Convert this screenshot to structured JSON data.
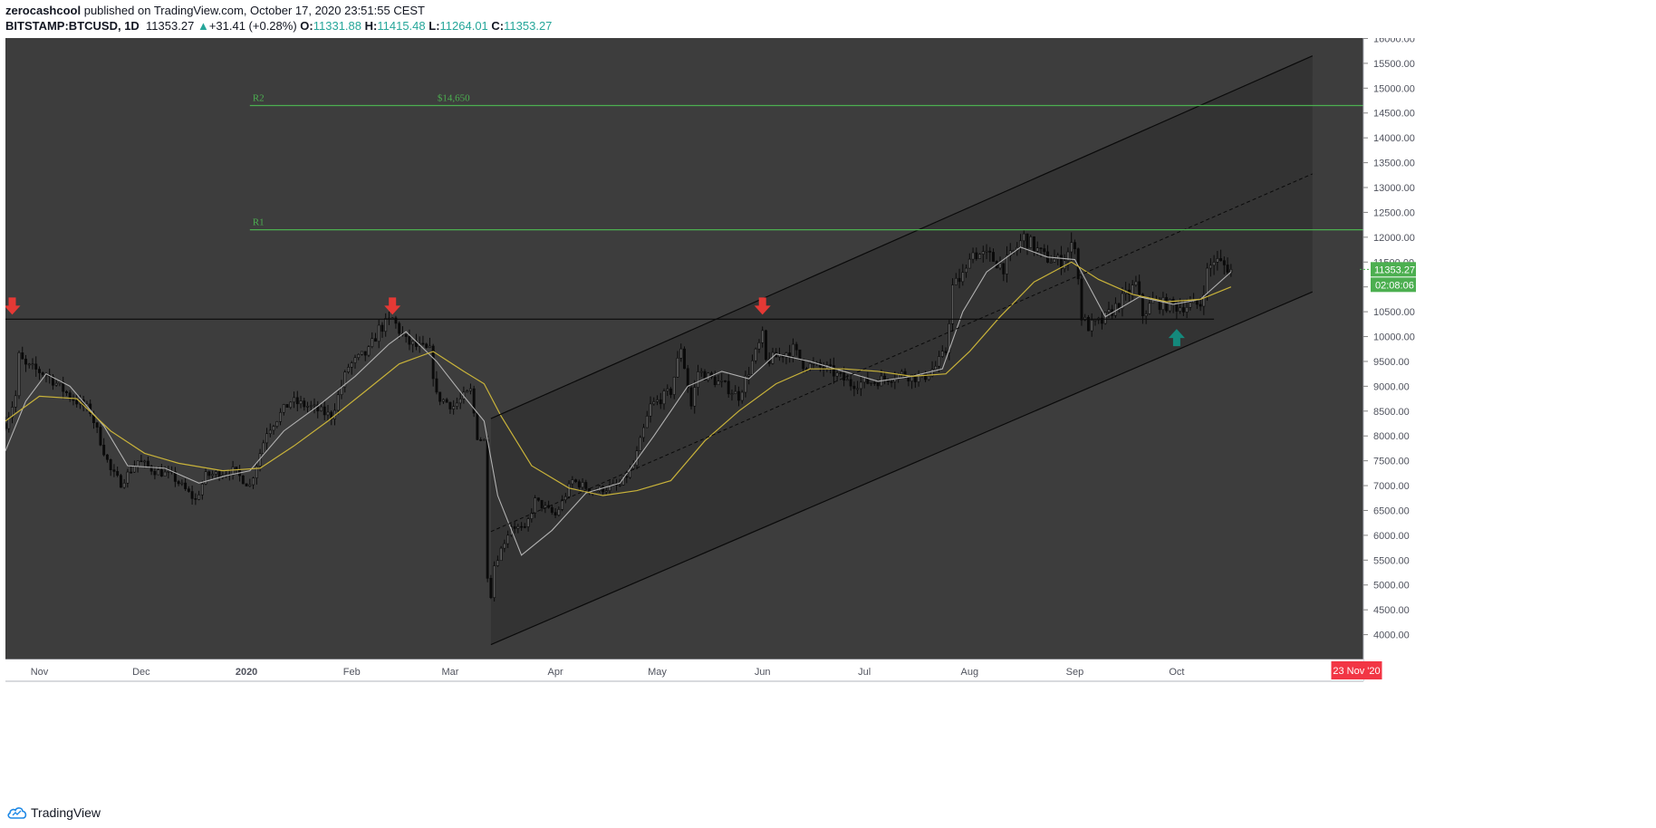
{
  "header": {
    "author": "zerocashcool",
    "published_text": "published on TradingView.com, October 17, 2020 23:51:55 CEST",
    "symbol": "BITSTAMP:BTCUSD, 1D",
    "last": "11353.27",
    "change": "+31.41 (+0.28%)",
    "o_label": "O:",
    "o": "11331.88",
    "h_label": "H:",
    "h": "11415.48",
    "l_label": "L:",
    "l": "11264.01",
    "c_label": "C:",
    "c": "11353.27"
  },
  "footer": {
    "brand": "TradingView"
  },
  "colors": {
    "background": "#3d3d3d",
    "channel_fill": "#333333",
    "candle": "#0a0a0a",
    "sma_fast": "#b2b2b2",
    "sma_slow": "#c9b33a",
    "resistance": "#4caf50",
    "arrow_down": "#e53935",
    "arrow_up": "#14897c",
    "price_label": "#4caf50",
    "date_label": "#f23645"
  },
  "chart_data": {
    "type": "candlestick",
    "symbol": "BITSTAMP:BTCUSD",
    "interval": "1D",
    "x_range": [
      "2019-10-22",
      "2020-11-25"
    ],
    "ylim": [
      3500,
      16100
    ],
    "y_ticks": [
      4000,
      4500,
      5000,
      5500,
      6000,
      6500,
      7000,
      7500,
      8000,
      8500,
      9000,
      9500,
      10000,
      10500,
      11000,
      11500,
      12000,
      12500,
      13000,
      13500,
      14000,
      14500,
      15000,
      15500,
      16000
    ],
    "y_tick_labels": [
      "4000.00",
      "4500.00",
      "5000.00",
      "5500.00",
      "6000.00",
      "6500.00",
      "7000.00",
      "7500.00",
      "8000.00",
      "8500.00",
      "9000.00",
      "9500.00",
      "10000.00",
      "10500.00",
      "11000.00",
      "11500.00",
      "12000.00",
      "12500.00",
      "13000.00",
      "13500.00",
      "14000.00",
      "14500.00",
      "15000.00",
      "15500.00",
      "16000.00"
    ],
    "x_ticks": [
      {
        "date": "2019-11-01",
        "label": "Nov",
        "bold": false
      },
      {
        "date": "2019-12-01",
        "label": "Dec",
        "bold": false
      },
      {
        "date": "2020-01-01",
        "label": "2020",
        "bold": true
      },
      {
        "date": "2020-02-01",
        "label": "Feb",
        "bold": false
      },
      {
        "date": "2020-03-01",
        "label": "Mar",
        "bold": false
      },
      {
        "date": "2020-04-01",
        "label": "Apr",
        "bold": false
      },
      {
        "date": "2020-05-01",
        "label": "May",
        "bold": false
      },
      {
        "date": "2020-06-01",
        "label": "Jun",
        "bold": false
      },
      {
        "date": "2020-07-01",
        "label": "Jul",
        "bold": false
      },
      {
        "date": "2020-08-01",
        "label": "Aug",
        "bold": false
      },
      {
        "date": "2020-09-01",
        "label": "Sep",
        "bold": false
      },
      {
        "date": "2020-10-01",
        "label": "Oct",
        "bold": false
      }
    ],
    "close_path": [
      [
        "2019-10-22",
        8250
      ],
      [
        "2019-10-25",
        8800
      ],
      [
        "2019-10-26",
        9600
      ],
      [
        "2019-10-28",
        9400
      ],
      [
        "2019-11-03",
        9250
      ],
      [
        "2019-11-10",
        8800
      ],
      [
        "2019-11-16",
        8500
      ],
      [
        "2019-11-22",
        7300
      ],
      [
        "2019-11-25",
        7050
      ],
      [
        "2019-11-30",
        7500
      ],
      [
        "2019-12-05",
        7300
      ],
      [
        "2019-12-10",
        7200
      ],
      [
        "2019-12-17",
        6700
      ],
      [
        "2019-12-20",
        7200
      ],
      [
        "2019-12-28",
        7300
      ],
      [
        "2020-01-02",
        7000
      ],
      [
        "2020-01-07",
        8100
      ],
      [
        "2020-01-14",
        8700
      ],
      [
        "2020-01-19",
        8600
      ],
      [
        "2020-01-26",
        8400
      ],
      [
        "2020-01-31",
        9400
      ],
      [
        "2020-02-06",
        9700
      ],
      [
        "2020-02-09",
        10150
      ],
      [
        "2020-02-13",
        10350
      ],
      [
        "2020-02-17",
        9900
      ],
      [
        "2020-02-20",
        9800
      ],
      [
        "2020-02-24",
        9700
      ],
      [
        "2020-02-26",
        8800
      ],
      [
        "2020-03-02",
        8600
      ],
      [
        "2020-03-07",
        8900
      ],
      [
        "2020-03-09",
        8000
      ],
      [
        "2020-03-11",
        7900
      ],
      [
        "2020-03-12",
        5200
      ],
      [
        "2020-03-13",
        4800
      ],
      [
        "2020-03-14",
        5400
      ],
      [
        "2020-03-19",
        6200
      ],
      [
        "2020-03-23",
        6100
      ],
      [
        "2020-03-26",
        6700
      ],
      [
        "2020-04-01",
        6400
      ],
      [
        "2020-04-06",
        7100
      ],
      [
        "2020-04-12",
        6900
      ],
      [
        "2020-04-20",
        7000
      ],
      [
        "2020-04-24",
        7400
      ],
      [
        "2020-04-29",
        8600
      ],
      [
        "2020-05-05",
        8900
      ],
      [
        "2020-05-08",
        9800
      ],
      [
        "2020-05-11",
        8600
      ],
      [
        "2020-05-13",
        9300
      ],
      [
        "2020-05-21",
        9000
      ],
      [
        "2020-05-25",
        8800
      ],
      [
        "2020-06-01",
        10000
      ],
      [
        "2020-06-02",
        9500
      ],
      [
        "2020-06-10",
        9750
      ],
      [
        "2020-06-13",
        9450
      ],
      [
        "2020-06-20",
        9350
      ],
      [
        "2020-06-27",
        9050
      ],
      [
        "2020-07-04",
        9100
      ],
      [
        "2020-07-12",
        9250
      ],
      [
        "2020-07-18",
        9150
      ],
      [
        "2020-07-22",
        9400
      ],
      [
        "2020-07-25",
        9700
      ],
      [
        "2020-07-27",
        11000
      ],
      [
        "2020-07-31",
        11300
      ],
      [
        "2020-08-01",
        11700
      ],
      [
        "2020-08-07",
        11600
      ],
      [
        "2020-08-11",
        11400
      ],
      [
        "2020-08-17",
        12000
      ],
      [
        "2020-08-20",
        11800
      ],
      [
        "2020-08-23",
        11600
      ],
      [
        "2020-08-28",
        11500
      ],
      [
        "2020-09-01",
        11900
      ],
      [
        "2020-09-03",
        10400
      ],
      [
        "2020-09-05",
        10200
      ],
      [
        "2020-09-09",
        10300
      ],
      [
        "2020-09-15",
        10750
      ],
      [
        "2020-09-19",
        11050
      ],
      [
        "2020-09-21",
        10450
      ],
      [
        "2020-09-24",
        10700
      ],
      [
        "2020-10-01",
        10600
      ],
      [
        "2020-10-08",
        10650
      ],
      [
        "2020-10-10",
        11300
      ],
      [
        "2020-10-12",
        11550
      ],
      [
        "2020-10-17",
        11353.27
      ]
    ],
    "sma_fast_path": [
      [
        "2019-10-22",
        7700
      ],
      [
        "2019-10-28",
        8700
      ],
      [
        "2019-11-03",
        9250
      ],
      [
        "2019-11-10",
        9000
      ],
      [
        "2019-11-20",
        8200
      ],
      [
        "2019-11-27",
        7400
      ],
      [
        "2019-12-08",
        7350
      ],
      [
        "2019-12-18",
        7050
      ],
      [
        "2019-12-26",
        7200
      ],
      [
        "2020-01-02",
        7300
      ],
      [
        "2020-01-12",
        8100
      ],
      [
        "2020-01-22",
        8600
      ],
      [
        "2020-02-02",
        9200
      ],
      [
        "2020-02-12",
        9850
      ],
      [
        "2020-02-17",
        10100
      ],
      [
        "2020-02-26",
        9500
      ],
      [
        "2020-03-05",
        8800
      ],
      [
        "2020-03-11",
        8300
      ],
      [
        "2020-03-15",
        6800
      ],
      [
        "2020-03-22",
        5600
      ],
      [
        "2020-03-31",
        6100
      ],
      [
        "2020-04-10",
        6850
      ],
      [
        "2020-04-20",
        7050
      ],
      [
        "2020-04-30",
        8000
      ],
      [
        "2020-05-10",
        9000
      ],
      [
        "2020-05-20",
        9300
      ],
      [
        "2020-05-28",
        9150
      ],
      [
        "2020-06-05",
        9650
      ],
      [
        "2020-06-15",
        9500
      ],
      [
        "2020-06-25",
        9300
      ],
      [
        "2020-07-05",
        9100
      ],
      [
        "2020-07-15",
        9200
      ],
      [
        "2020-07-24",
        9350
      ],
      [
        "2020-07-30",
        10500
      ],
      [
        "2020-08-06",
        11300
      ],
      [
        "2020-08-16",
        11800
      ],
      [
        "2020-08-24",
        11600
      ],
      [
        "2020-09-01",
        11550
      ],
      [
        "2020-09-10",
        10400
      ],
      [
        "2020-09-20",
        10800
      ],
      [
        "2020-09-30",
        10650
      ],
      [
        "2020-10-08",
        10750
      ],
      [
        "2020-10-17",
        11300
      ]
    ],
    "sma_slow_path": [
      [
        "2019-10-22",
        8300
      ],
      [
        "2019-11-01",
        8800
      ],
      [
        "2019-11-12",
        8750
      ],
      [
        "2019-11-22",
        8100
      ],
      [
        "2019-12-02",
        7650
      ],
      [
        "2019-12-12",
        7450
      ],
      [
        "2019-12-25",
        7300
      ],
      [
        "2020-01-05",
        7350
      ],
      [
        "2020-01-15",
        7800
      ],
      [
        "2020-01-25",
        8300
      ],
      [
        "2020-02-05",
        8900
      ],
      [
        "2020-02-15",
        9450
      ],
      [
        "2020-02-25",
        9700
      ],
      [
        "2020-03-05",
        9300
      ],
      [
        "2020-03-11",
        9050
      ],
      [
        "2020-03-16",
        8400
      ],
      [
        "2020-03-25",
        7400
      ],
      [
        "2020-04-05",
        6950
      ],
      [
        "2020-04-15",
        6800
      ],
      [
        "2020-04-25",
        6900
      ],
      [
        "2020-05-05",
        7100
      ],
      [
        "2020-05-15",
        7900
      ],
      [
        "2020-05-25",
        8500
      ],
      [
        "2020-06-05",
        9050
      ],
      [
        "2020-06-15",
        9350
      ],
      [
        "2020-06-25",
        9350
      ],
      [
        "2020-07-05",
        9300
      ],
      [
        "2020-07-15",
        9200
      ],
      [
        "2020-07-25",
        9250
      ],
      [
        "2020-08-01",
        9700
      ],
      [
        "2020-08-10",
        10400
      ],
      [
        "2020-08-20",
        11100
      ],
      [
        "2020-08-31",
        11500
      ],
      [
        "2020-09-08",
        11150
      ],
      [
        "2020-09-18",
        10850
      ],
      [
        "2020-09-28",
        10700
      ],
      [
        "2020-10-08",
        10750
      ],
      [
        "2020-10-17",
        11000
      ]
    ],
    "annotations": {
      "horizontal_support": {
        "from": "2019-10-22",
        "to": "2020-10-12",
        "price": 10350
      },
      "resistance_levels": [
        {
          "label": "R2",
          "price_label": "$14,650",
          "price": 14650,
          "from": "2020-01-02"
        },
        {
          "label": "R1",
          "price_label": "",
          "price": 12150,
          "from": "2020-01-02"
        }
      ],
      "channel_lower": {
        "from": [
          "2020-03-13",
          3800
        ],
        "to": [
          "2020-11-10",
          10900
        ]
      },
      "channel_upper": {
        "from": [
          "2020-03-13",
          8350
        ],
        "to": [
          "2020-11-10",
          15650
        ]
      },
      "channel_mid": {
        "from": [
          "2020-03-13",
          6075
        ],
        "to": [
          "2020-11-10",
          13275
        ]
      },
      "arrows": [
        {
          "direction": "down",
          "date": "2019-10-24",
          "price": 10350
        },
        {
          "direction": "down",
          "date": "2020-02-13",
          "price": 10350
        },
        {
          "direction": "down",
          "date": "2020-06-01",
          "price": 10350
        },
        {
          "direction": "up",
          "date": "2020-10-01",
          "price": 10300
        }
      ]
    },
    "price_label": "11353.27",
    "countdown_label": "02:08:06",
    "date_marker": "23 Nov '20"
  }
}
